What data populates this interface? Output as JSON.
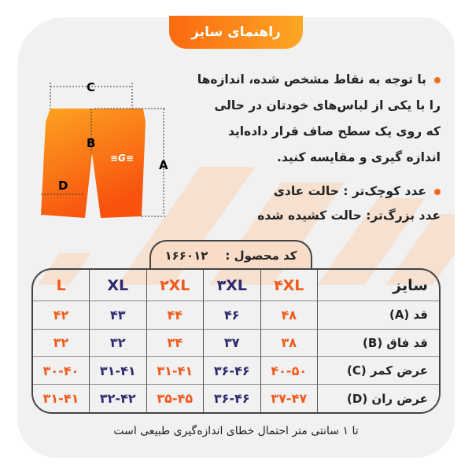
{
  "header": {
    "title": "راهنمای سایز"
  },
  "instructions": {
    "line1": "با توجه به نقاط مشخص شده، اندازه‌ها",
    "line2": "را با یکی از لباس‌های خودتان در حالی",
    "line3": "که روی یک سطح صاف قرار داده‌اید",
    "line4": "اندازه گیری و مقایسه کنید.",
    "note1": "عدد کوچک‌تر : حالت عادی",
    "note2": "عدد بزرگ‌تر: حالت کشیده شده"
  },
  "diagram": {
    "labels": [
      "A",
      "B",
      "C",
      "D"
    ]
  },
  "product_code": {
    "label": "کد محصول :",
    "value": "۱۶۶۰۱۲"
  },
  "table": {
    "header": {
      "label": "سایز",
      "sizes": [
        "۴XL",
        "۳XL",
        "۲XL",
        "XL",
        "L"
      ]
    },
    "rows": [
      {
        "label": "قد (A)",
        "values": [
          "۴۸",
          "۴۶",
          "۴۴",
          "۴۳",
          "۴۲"
        ]
      },
      {
        "label": "قد فاق (B)",
        "values": [
          "۳۸",
          "۳۷",
          "۳۴",
          "۳۲",
          "۳۲"
        ]
      },
      {
        "label": "عرض کمر (C)",
        "values": [
          "۴۰-۵۰",
          "۳۶-۴۶",
          "۳۱-۴۱",
          "۳۱-۴۱",
          "۳۰-۴۰"
        ]
      },
      {
        "label": "عرض ران (D)",
        "values": [
          "۳۷-۴۷",
          "۳۶-۴۶",
          "۳۵-۴۵",
          "۳۲-۴۲",
          "۳۱-۴۱"
        ]
      }
    ]
  },
  "footer": {
    "note": "تا ۱ سانتی متر احتمال خطای اندازه‌گیری طبیعی است"
  },
  "colors": {
    "orange": "#f05a1a",
    "navy": "#2d2a6e"
  }
}
